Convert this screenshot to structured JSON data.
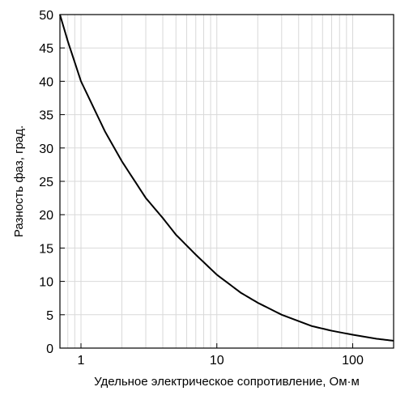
{
  "chart_data": {
    "type": "line",
    "xlabel": "Удельное электрическое сопротивление,  Ом·м",
    "ylabel": "Разность фаз,  град.",
    "x_scale": "log",
    "xlim": [
      0.7,
      200
    ],
    "ylim": [
      0,
      50
    ],
    "x_ticks": [
      1,
      10,
      100
    ],
    "x_tick_labels": [
      "1",
      "10",
      "100"
    ],
    "y_ticks": [
      0,
      5,
      10,
      15,
      20,
      25,
      30,
      35,
      40,
      45,
      50
    ],
    "y_tick_labels": [
      "0",
      "5",
      "10",
      "15",
      "20",
      "25",
      "30",
      "35",
      "40",
      "45",
      "50"
    ],
    "grid": true,
    "series": [
      {
        "color": "#000000",
        "x": [
          0.7,
          0.8,
          1,
          1.5,
          2,
          3,
          4,
          5,
          7,
          10,
          15,
          20,
          30,
          50,
          70,
          100,
          150,
          200
        ],
        "y": [
          50,
          46,
          40,
          32.5,
          28,
          22.5,
          19.5,
          17,
          14,
          11,
          8.3,
          6.8,
          5,
          3.3,
          2.6,
          2,
          1.4,
          1.1
        ]
      }
    ]
  }
}
